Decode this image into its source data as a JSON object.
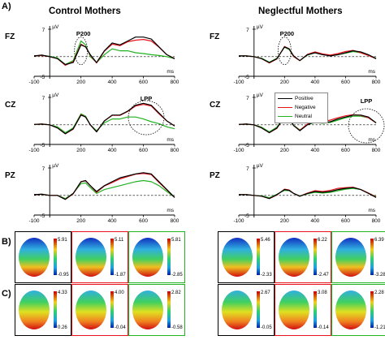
{
  "section_labels": {
    "a": "A)",
    "b": "B)",
    "c": "C)"
  },
  "groups": [
    "Control Mothers",
    "Neglectful Mothers"
  ],
  "channels": [
    "FZ",
    "CZ",
    "PZ"
  ],
  "axis": {
    "y_unit": "µV",
    "y_max_label": "7",
    "y_min_label": "-5",
    "x_unit": "ms",
    "x_ticks": [
      "-100",
      "200",
      "400",
      "600",
      "800"
    ]
  },
  "annotations": {
    "p200": "P200",
    "lpp": "LPP"
  },
  "legend": {
    "items": [
      "Positive",
      "Negative",
      "Neutral"
    ]
  },
  "colors": {
    "positive": "#000000",
    "negative": "#e8141c",
    "neutral": "#22b222"
  },
  "chart_data": {
    "type": "line",
    "x": [
      -100,
      -50,
      0,
      50,
      100,
      150,
      200,
      230,
      260,
      300,
      350,
      400,
      450,
      500,
      550,
      600,
      650,
      700,
      750,
      800
    ],
    "xlim": [
      -100,
      800
    ],
    "ylim": [
      -5,
      7
    ],
    "xlabel": "ms",
    "ylabel": "µV",
    "panels": [
      {
        "group": "Control Mothers",
        "channel": "FZ",
        "series": [
          {
            "name": "Positive",
            "values": [
              0.2,
              0.4,
              0.0,
              -0.5,
              -2.0,
              -1.5,
              3.0,
              2.5,
              0.5,
              -1.5,
              1.5,
              3.5,
              3.0,
              4.0,
              5.0,
              5.0,
              4.5,
              2.5,
              0.5,
              -0.5
            ]
          },
          {
            "name": "Negative",
            "values": [
              0.2,
              0.3,
              0.0,
              -0.5,
              -2.2,
              -1.3,
              3.2,
              2.5,
              0.4,
              -1.6,
              1.4,
              3.2,
              2.8,
              3.8,
              4.2,
              4.4,
              4.0,
              2.4,
              0.5,
              -0.5
            ]
          },
          {
            "name": "Neutral",
            "values": [
              0.2,
              0.3,
              0.1,
              -0.3,
              -2.0,
              -1.0,
              4.0,
              3.0,
              0.0,
              -1.5,
              0.5,
              2.0,
              1.5,
              1.5,
              1.0,
              0.8,
              0.5,
              0.3,
              0.0,
              -0.5
            ]
          }
        ]
      },
      {
        "group": "Control Mothers",
        "channel": "CZ",
        "series": [
          {
            "name": "Positive",
            "values": [
              0.1,
              0.2,
              0.0,
              -0.8,
              -2.3,
              -1.0,
              2.5,
              2.0,
              0.0,
              -1.8,
              1.0,
              2.5,
              2.5,
              3.5,
              5.0,
              5.5,
              5.0,
              3.0,
              1.0,
              -0.3
            ]
          },
          {
            "name": "Negative",
            "values": [
              0.1,
              0.2,
              0.0,
              -0.8,
              -2.3,
              -1.1,
              2.6,
              2.0,
              0.0,
              -1.8,
              1.0,
              2.4,
              2.4,
              3.4,
              4.8,
              5.2,
              4.8,
              2.8,
              1.0,
              -0.3
            ]
          },
          {
            "name": "Neutral",
            "values": [
              0.1,
              0.2,
              0.0,
              -0.5,
              -2.0,
              -0.8,
              2.8,
              2.2,
              0.0,
              -1.5,
              0.5,
              1.5,
              1.5,
              2.0,
              2.0,
              1.5,
              0.8,
              0.3,
              -0.5,
              -1.0
            ]
          }
        ]
      },
      {
        "group": "Control Mothers",
        "channel": "PZ",
        "series": [
          {
            "name": "Positive",
            "values": [
              0.2,
              0.3,
              0.0,
              0.0,
              -1.0,
              0.5,
              3.5,
              3.8,
              2.5,
              1.0,
              2.5,
              3.5,
              4.5,
              5.0,
              5.5,
              5.8,
              5.5,
              3.5,
              1.5,
              -0.5
            ]
          },
          {
            "name": "Negative",
            "values": [
              0.2,
              0.3,
              0.0,
              0.0,
              -1.0,
              0.4,
              3.5,
              3.7,
              2.5,
              0.8,
              2.4,
              3.3,
              4.2,
              4.8,
              5.4,
              5.6,
              5.3,
              3.3,
              1.4,
              -0.5
            ]
          },
          {
            "name": "Neutral",
            "values": [
              0.2,
              0.3,
              0.0,
              0.0,
              -0.8,
              0.5,
              3.0,
              3.2,
              2.0,
              0.5,
              1.5,
              2.0,
              2.5,
              3.0,
              3.5,
              3.8,
              3.5,
              2.5,
              1.0,
              -0.5
            ]
          }
        ]
      },
      {
        "group": "Neglectful Mothers",
        "channel": "FZ",
        "series": [
          {
            "name": "Positive",
            "values": [
              0.2,
              0.2,
              0.0,
              -0.5,
              -1.5,
              -0.5,
              2.5,
              2.0,
              0.2,
              -1.0,
              0.5,
              1.0,
              0.5,
              0.2,
              0.5,
              1.0,
              1.5,
              1.2,
              0.5,
              -0.5
            ]
          },
          {
            "name": "Negative",
            "values": [
              0.2,
              0.2,
              0.0,
              -0.5,
              -1.6,
              -0.6,
              2.6,
              2.0,
              0.0,
              -1.0,
              0.6,
              1.2,
              0.7,
              0.4,
              0.8,
              1.3,
              1.6,
              1.0,
              0.3,
              -0.5
            ]
          },
          {
            "name": "Neutral",
            "values": [
              0.2,
              0.2,
              0.0,
              -0.4,
              -1.4,
              -0.4,
              2.4,
              1.8,
              0.0,
              -1.0,
              0.4,
              1.0,
              0.5,
              0.3,
              0.5,
              0.9,
              1.3,
              1.0,
              0.4,
              -0.4
            ]
          }
        ]
      },
      {
        "group": "Neglectful Mothers",
        "channel": "CZ",
        "series": [
          {
            "name": "Positive",
            "values": [
              0.1,
              0.2,
              0.0,
              -0.8,
              -2.0,
              -0.8,
              2.0,
              1.5,
              -0.2,
              -1.5,
              0.0,
              0.8,
              0.5,
              0.8,
              1.5,
              2.0,
              2.5,
              2.5,
              2.0,
              0.5
            ]
          },
          {
            "name": "Negative",
            "values": [
              0.1,
              0.2,
              0.0,
              -0.8,
              -2.0,
              -0.9,
              2.1,
              1.5,
              -0.2,
              -1.4,
              0.2,
              1.0,
              0.8,
              1.2,
              1.8,
              2.3,
              2.6,
              2.4,
              1.8,
              0.5
            ]
          },
          {
            "name": "Neutral",
            "values": [
              0.1,
              0.2,
              0.0,
              -0.6,
              -1.8,
              -0.6,
              2.2,
              1.6,
              -0.1,
              -1.3,
              0.0,
              0.6,
              0.4,
              0.6,
              1.2,
              1.8,
              2.2,
              2.2,
              1.8,
              0.5
            ]
          }
        ]
      },
      {
        "group": "Neglectful Mothers",
        "channel": "PZ",
        "series": [
          {
            "name": "Positive",
            "values": [
              0.2,
              0.2,
              0.0,
              -0.2,
              -0.8,
              0.2,
              1.5,
              1.3,
              0.5,
              -0.2,
              0.5,
              1.0,
              0.8,
              1.0,
              1.5,
              1.8,
              2.0,
              1.5,
              0.5,
              -0.5
            ]
          },
          {
            "name": "Negative",
            "values": [
              0.2,
              0.2,
              0.0,
              -0.2,
              -0.8,
              0.1,
              1.6,
              1.4,
              0.5,
              -0.2,
              0.6,
              1.2,
              1.0,
              1.3,
              1.8,
              2.0,
              2.1,
              1.5,
              0.6,
              -0.4
            ]
          },
          {
            "name": "Neutral",
            "values": [
              0.2,
              0.2,
              0.0,
              -0.1,
              -0.6,
              0.3,
              1.3,
              1.2,
              0.5,
              -0.1,
              0.4,
              0.8,
              0.6,
              0.8,
              1.2,
              1.6,
              1.8,
              1.5,
              0.6,
              -0.3
            ]
          }
        ]
      }
    ]
  },
  "topomaps": {
    "b": [
      {
        "group": "Control Mothers",
        "condition": "Positive",
        "max": "5.91",
        "min": "-0.95"
      },
      {
        "group": "Control Mothers",
        "condition": "Negative",
        "max": "5.11",
        "min": "-1.87"
      },
      {
        "group": "Control Mothers",
        "condition": "Neutral",
        "max": "5.81",
        "min": "-2.85"
      },
      {
        "group": "Neglectful Mothers",
        "condition": "Positive",
        "max": "5.46",
        "min": "-2.33"
      },
      {
        "group": "Neglectful Mothers",
        "condition": "Negative",
        "max": "6.22",
        "min": "-2.47"
      },
      {
        "group": "Neglectful Mothers",
        "condition": "Neutral",
        "max": "6.39",
        "min": "-3.28"
      }
    ],
    "c": [
      {
        "group": "Control Mothers",
        "condition": "Positive",
        "max": "4.33",
        "min": "0.26"
      },
      {
        "group": "Control Mothers",
        "condition": "Negative",
        "max": "4.00",
        "min": "-0.04"
      },
      {
        "group": "Control Mothers",
        "condition": "Neutral",
        "max": "2.82",
        "min": "-0.58"
      },
      {
        "group": "Neglectful Mothers",
        "condition": "Positive",
        "max": "2.67",
        "min": "-0.05"
      },
      {
        "group": "Neglectful Mothers",
        "condition": "Negative",
        "max": "3.08",
        "min": "-0.14"
      },
      {
        "group": "Neglectful Mothers",
        "condition": "Neutral",
        "max": "2.28",
        "min": "-1.21"
      }
    ]
  }
}
